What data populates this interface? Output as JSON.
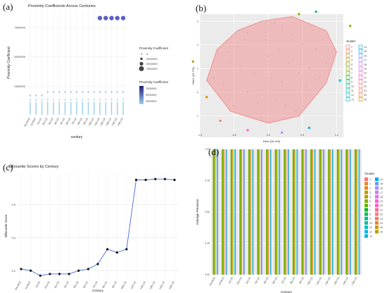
{
  "panels": [
    {
      "label": "(a)"
    },
    {
      "label": "(b)"
    },
    {
      "label": "(c)"
    },
    {
      "label": "(d)"
    }
  ],
  "chart_data": [
    {
      "type": "scatter",
      "title": "Proximity Coefficients Across Centuries",
      "xlabel": "century",
      "ylabel": "Proximity Coefficient",
      "categories": [
        "2nd BCE",
        "1st BCE",
        "1st CE",
        "2nd CE",
        "3rd CE",
        "4th CE",
        "5th CE",
        "6th CE",
        "7th CE",
        "8th CE",
        "9th CE",
        "10th CE",
        "11th CE",
        "12th CE",
        "13th CE",
        "14th CE",
        "15th CE"
      ],
      "yticks": [
        "2500000",
        "5000000",
        "7500000"
      ],
      "ylim": [
        0,
        9000000
      ],
      "outlier_points": {
        "x": [
          "11th CE",
          "12th CE",
          "13th CE",
          "14th CE",
          "15th CE"
        ],
        "y": [
          8300000,
          8300000,
          8300000,
          8300000,
          8300000
        ]
      },
      "upper_points": {
        "y": [
          1700000,
          1700000,
          1700000,
          2000000,
          2000000,
          2000000,
          2000000,
          2000000,
          2000000,
          2000000,
          2000000,
          2000000,
          2000000,
          2000000,
          2000000,
          2000000,
          2000000
        ]
      },
      "legend_size": {
        "title": "Proximity Coefficient",
        "entries": [
          "0",
          "2500000",
          "5000000",
          "7500000"
        ]
      },
      "legend_color": {
        "title": "Proximity Coefficient",
        "entries": [
          "7500000",
          "5000000",
          "2500000"
        ],
        "low": "#9fd0ee",
        "high": "#1f1d7a"
      },
      "grid": true,
      "background": "#ffffff"
    },
    {
      "type": "scatter",
      "xlabel": "Dim1 (51.4%)",
      "ylabel": "Dim2 (22.7%)",
      "xticks": [
        "-1.0",
        "-0.5",
        "0.0",
        "0.5",
        "1.0"
      ],
      "yticks": [
        "-1",
        "0",
        "1",
        "2",
        "3"
      ],
      "xlim": [
        -1.0,
        1.1
      ],
      "ylim": [
        -1.9,
        3.3
      ],
      "legend": {
        "title": "cluster",
        "col1": [
          "1",
          "2",
          "3",
          "4",
          "5",
          "6",
          "7",
          "8",
          "9",
          "10",
          "11",
          "12",
          "13"
        ],
        "col2": [
          "14",
          "15",
          "16",
          "17",
          "18",
          "19",
          "20",
          "21",
          "22",
          "23",
          "24",
          "25",
          "26"
        ]
      },
      "hull_points": [
        [
          -0.45,
          2.6
        ],
        [
          -0.1,
          3.0
        ],
        [
          0.35,
          3.2
        ],
        [
          0.85,
          2.6
        ],
        [
          1.0,
          1.7
        ],
        [
          0.85,
          0.4
        ],
        [
          0.45,
          -1.0
        ],
        [
          0.0,
          -1.3
        ],
        [
          -0.55,
          -0.8
        ],
        [
          -0.9,
          0.5
        ],
        [
          -0.75,
          1.8
        ]
      ],
      "points": [
        [
          -0.3,
          2.5
        ],
        [
          0.1,
          2.9
        ],
        [
          0.5,
          3.0
        ],
        [
          0.8,
          2.2
        ],
        [
          0.95,
          1.5
        ],
        [
          0.75,
          0.6
        ],
        [
          0.4,
          -0.8
        ],
        [
          -0.1,
          -1.1
        ],
        [
          -0.5,
          -0.6
        ],
        [
          -0.8,
          0.6
        ],
        [
          -0.6,
          1.7
        ],
        [
          0.0,
          1.5
        ],
        [
          0.3,
          1.2
        ],
        [
          0.5,
          2.0
        ],
        [
          -0.2,
          0.8
        ],
        [
          0.2,
          0.4
        ],
        [
          -0.4,
          1.1
        ],
        [
          0.6,
          1.0
        ],
        [
          0.1,
          -0.3
        ],
        [
          -0.3,
          0.0
        ],
        [
          0.7,
          1.8
        ],
        [
          0.35,
          2.4
        ],
        [
          -0.05,
          2.2
        ],
        [
          0.25,
          -0.6
        ],
        [
          -0.65,
          0.3
        ],
        [
          0.55,
          0.2
        ],
        [
          0.15,
          1.8
        ],
        [
          -0.45,
          1.9
        ],
        [
          0.85,
          1.2
        ],
        [
          0.05,
          0.6
        ],
        [
          -0.15,
          -0.5
        ],
        [
          0.45,
          0.8
        ],
        [
          -0.35,
          2.2
        ],
        [
          0.65,
          2.6
        ],
        [
          0.2,
          2.7
        ],
        [
          -0.55,
          1.3
        ]
      ],
      "outside_points": [
        [
          1.2,
          2.8
        ],
        [
          1.15,
          1.2
        ],
        [
          1.05,
          0.5
        ],
        [
          0.6,
          -1.5
        ],
        [
          0.2,
          -1.7
        ],
        [
          -0.3,
          -1.6
        ],
        [
          -0.7,
          -1.2
        ],
        [
          -1.1,
          1.3
        ],
        [
          -0.9,
          -0.2
        ],
        [
          0.45,
          3.3
        ],
        [
          0.7,
          3.4
        ]
      ],
      "hull_color": "#f08080",
      "background": "#ebebeb"
    },
    {
      "type": "line",
      "title": "Silhouette Scores by Century",
      "xlabel": "Century",
      "ylabel": "Silhouette Score",
      "categories": [
        "2nd BCE",
        "1st BCE",
        "1st CE",
        "2nd CE",
        "3rd CE",
        "4th CE",
        "5th CE",
        "6th CE",
        "7th CE",
        "8th CE",
        "9th CE",
        "10th CE",
        "11th CE",
        "12th CE",
        "13th CE",
        "14th CE",
        "15th CE"
      ],
      "values": [
        0.21,
        0.2,
        0.17,
        0.18,
        0.18,
        0.18,
        0.2,
        0.21,
        0.24,
        0.33,
        0.31,
        0.33,
        0.75,
        0.75,
        0.755,
        0.755,
        0.75
      ],
      "yticks": [
        "0.2",
        "0.4",
        "0.6"
      ],
      "ylim": [
        0.15,
        0.79
      ],
      "line_color": "#4169e1",
      "grid": true,
      "background": "#ffffff"
    },
    {
      "type": "bar",
      "xlabel": "Century",
      "ylabel": "Average Presence",
      "categories": [
        "2nd BCE",
        "1st BCE",
        "1st CE",
        "2nd CE",
        "3rd CE",
        "4th CE",
        "5th CE",
        "6th CE",
        "7th CE",
        "8th CE",
        "9th CE",
        "10th CE",
        "11th CE",
        "12th CE",
        "13th CE",
        "14th CE",
        "15th CE"
      ],
      "yticks": [
        "0.00",
        "0.25",
        "0.50",
        "0.75",
        "1.00"
      ],
      "ylim": [
        0,
        1.0
      ],
      "values_per_category": 1.0,
      "legend": {
        "title": "Cluster",
        "col1": [
          "0",
          "1",
          "2",
          "3",
          "4",
          "5",
          "6",
          "7",
          "8",
          "9",
          "10",
          "11",
          "12",
          "13"
        ],
        "col2": [
          "14",
          "15",
          "16",
          "17",
          "18",
          "19",
          "20",
          "21",
          "22",
          "23",
          "24",
          "25",
          "26"
        ]
      },
      "background": "#ebebeb"
    }
  ]
}
